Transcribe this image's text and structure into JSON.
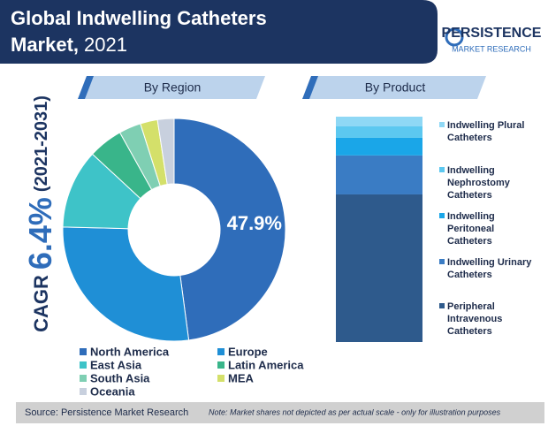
{
  "header": {
    "title_line1": "Global Indwelling Catheters",
    "title_line2": "Market,",
    "title_year": "2021"
  },
  "logo": {
    "name": "PERSISTENCE",
    "tagline": "MARKET RESEARCH"
  },
  "cagr": {
    "label": "CAGR",
    "value": "6.4%",
    "period": "(2021-2031)"
  },
  "chart_data": [
    {
      "type": "pie",
      "title": "By Region",
      "categories": [
        "North America",
        "Europe",
        "East Asia",
        "Latin America",
        "South Asia",
        "MEA",
        "Oceania"
      ],
      "values": [
        47.9,
        27.5,
        11.5,
        5,
        3.2,
        2.5,
        2.4
      ],
      "value_labels": [
        "47.9%",
        null,
        null,
        null,
        null,
        null,
        null
      ],
      "colors": [
        "#2f6dba",
        "#1f8fd6",
        "#3ec3c8",
        "#39b58a",
        "#7fcfb3",
        "#d4e06a",
        "#c8d0de"
      ]
    },
    {
      "type": "bar",
      "stacked": true,
      "title": "By Product",
      "categories": [
        null
      ],
      "ylim": [
        0,
        100
      ],
      "series": [
        {
          "name": "Peripheral Intravenous Catheters",
          "color": "#2e5a8c",
          "values": [
            65.5
          ]
        },
        {
          "name": "Indwelling Urinary Catheters",
          "color": "#3a7cc4",
          "values": [
            17.3
          ]
        },
        {
          "name": "Indwelling Peritoneal Catheters",
          "color": "#1aa6e8",
          "values": [
            7.8
          ]
        },
        {
          "name": "Indwelling Nephrostomy Catheters",
          "color": "#5cc8f0",
          "values": [
            5.1
          ]
        },
        {
          "name": "Indwelling Plural Catheters",
          "color": "#8fd8f5",
          "values": [
            4.3
          ]
        }
      ]
    }
  ],
  "footer": {
    "source": "Source: Persistence Market Research",
    "note": "Note: Market shares not depicted as per actual scale - only for illustration purposes"
  }
}
